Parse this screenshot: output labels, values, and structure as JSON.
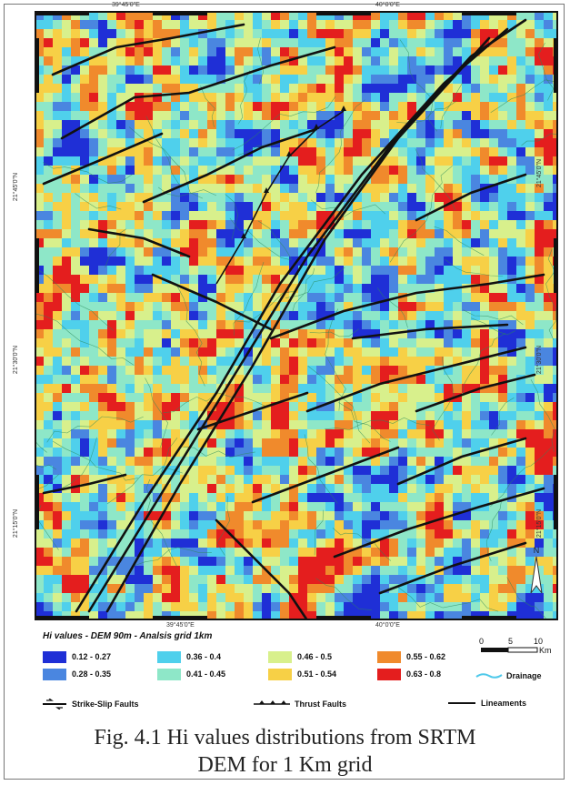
{
  "map": {
    "coords_top": [
      "39°45'0\"E",
      "40°0'0\"E"
    ],
    "coords_bottom": [
      "39°45'0\"E",
      "40°0'0\"E"
    ],
    "coords_left": [
      "21°45'0\"N",
      "21°30'0\"N",
      "21°15'0\"N"
    ],
    "coords_right": [
      "21°45'0\"N",
      "21°30'0\"N",
      "21°15'0\"N"
    ],
    "north_label": "N"
  },
  "legend": {
    "title": "Hi values - DEM 90m - Analsis grid 1km",
    "classes": [
      {
        "label": "0.12 - 0.27",
        "color": "#1f2fd6"
      },
      {
        "label": "0.28 - 0.35",
        "color": "#4a86e0"
      },
      {
        "label": "0.36 - 0.4",
        "color": "#4fd0ec"
      },
      {
        "label": "0.41 - 0.45",
        "color": "#8ee7c8"
      },
      {
        "label": "0.46 - 0.5",
        "color": "#d8f08c"
      },
      {
        "label": "0.51 - 0.54",
        "color": "#f7d046"
      },
      {
        "label": "0.55 - 0.62",
        "color": "#f08a2c"
      },
      {
        "label": "0.63 - 0.8",
        "color": "#e41e1e"
      }
    ],
    "strike_slip": "Strike-Slip Faults",
    "thrust": "Thrust Faults",
    "lineaments": "Lineaments",
    "drainage": "Drainage",
    "scale": {
      "ticks": [
        "0",
        "5",
        "10"
      ],
      "unit": "Km"
    }
  },
  "caption": {
    "line1": "Fig. 4.1 Hi values distributions from SRTM",
    "line2": "DEM for 1 Km grid"
  }
}
